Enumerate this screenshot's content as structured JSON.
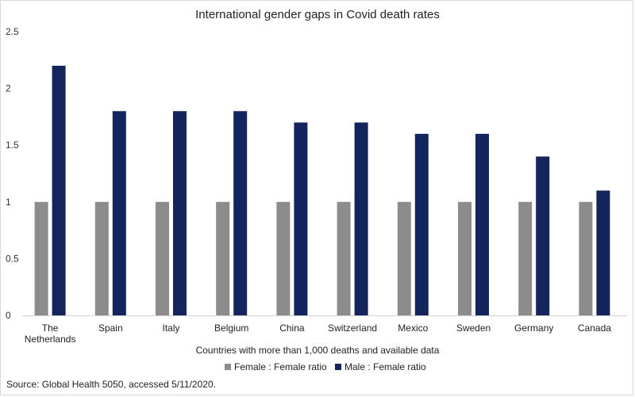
{
  "chart_data": {
    "type": "bar",
    "title": "International gender gaps in Covid death rates",
    "xlabel": "Countries with more than 1,000 deaths and available data",
    "ylabel": "",
    "ylim": [
      0,
      2.5
    ],
    "yticks": [
      "0",
      "0.5",
      "1",
      "1.5",
      "2",
      "2.5"
    ],
    "ytick_values": [
      0,
      0.5,
      1,
      1.5,
      2,
      2.5
    ],
    "grid": false,
    "legend_position": "bottom",
    "categories": [
      [
        "The",
        "Netherlands"
      ],
      [
        "Spain"
      ],
      [
        "Italy"
      ],
      [
        "Belgium"
      ],
      [
        "China"
      ],
      [
        "Switzerland"
      ],
      [
        "Mexico"
      ],
      [
        "Sweden"
      ],
      [
        "Germany"
      ],
      [
        "Canada"
      ]
    ],
    "series": [
      {
        "name": "Female : Female ratio",
        "color": "#8c8c8c",
        "values": [
          1,
          1,
          1,
          1,
          1,
          1,
          1,
          1,
          1,
          1
        ]
      },
      {
        "name": "Male : Female ratio",
        "color": "#14245c",
        "values": [
          2.2,
          1.8,
          1.8,
          1.8,
          1.7,
          1.7,
          1.6,
          1.6,
          1.4,
          1.1
        ]
      }
    ]
  },
  "source": "Source: Global Health 5050,  accessed 5/11/2020."
}
